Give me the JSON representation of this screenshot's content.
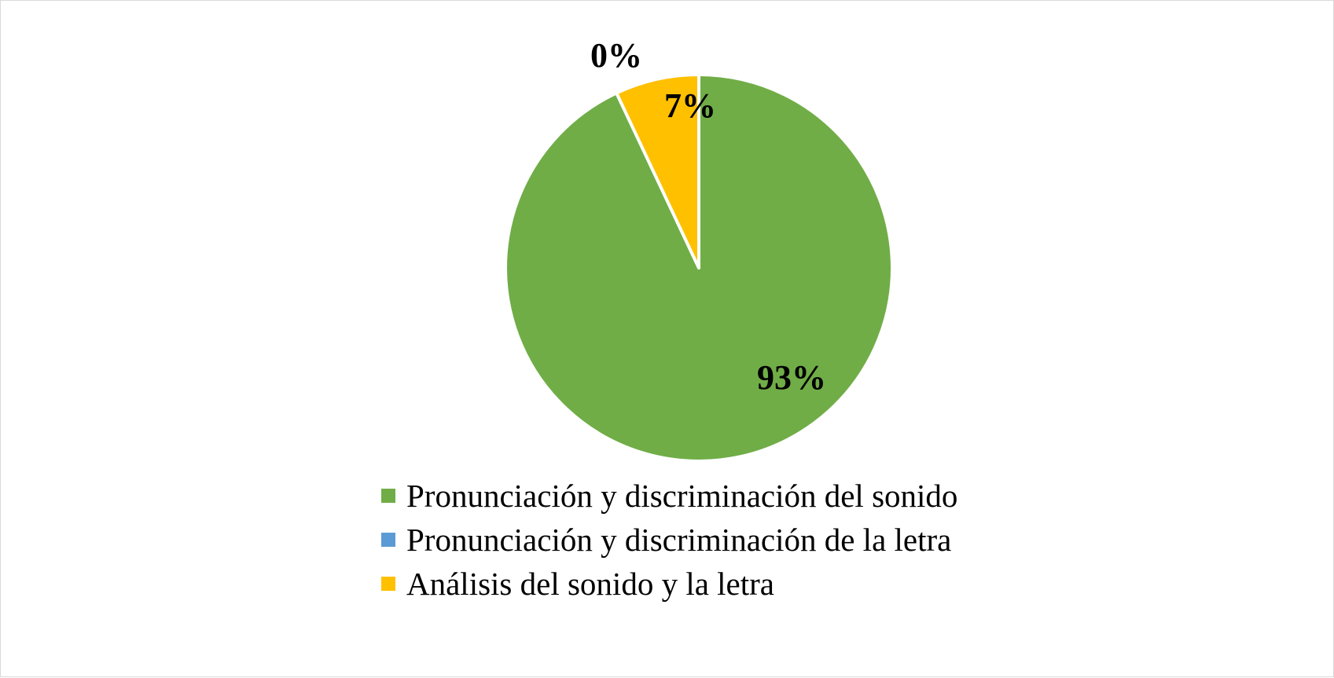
{
  "chart_data": {
    "type": "pie",
    "title": "",
    "legend_placement": "bottom",
    "slices": [
      {
        "label": "Pronunciación y discriminación del sonido",
        "value": 93,
        "data_label": "93%",
        "color": "#70AD47"
      },
      {
        "label": "Pronunciación y discriminación de la letra",
        "value": 0,
        "data_label": "0%",
        "color": "#5B9BD5"
      },
      {
        "label": "Análisis del sonido y la letra",
        "value": 7,
        "data_label": "7%",
        "color": "#FFC000"
      }
    ]
  }
}
